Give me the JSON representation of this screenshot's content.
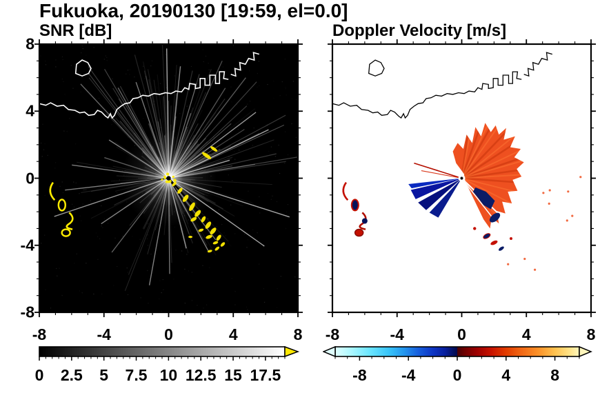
{
  "title": "Fukuoka, 20190130 [19:59, el=0.0]",
  "panels": {
    "snr": {
      "label": "SNR [dB]"
    },
    "velocity": {
      "label": "Doppler Velocity [m/s]"
    }
  },
  "axes": {
    "x_tick_labels": [
      "-8",
      "-4",
      "0",
      "4",
      "8"
    ],
    "x_tick_values": [
      -8,
      -4,
      0,
      4,
      8
    ],
    "y_tick_labels": [
      "8",
      "4",
      "0",
      "-4",
      "-8"
    ],
    "y_tick_values": [
      8,
      4,
      0,
      -4,
      -8
    ],
    "x_range": [
      -8,
      8
    ],
    "y_range": [
      -8,
      8
    ]
  },
  "colorbars": {
    "snr": {
      "tick_labels": [
        "0",
        "2.5",
        "5",
        "7.5",
        "10",
        "12.5",
        "15",
        "17.5"
      ],
      "tick_values": [
        0,
        2.5,
        5,
        7.5,
        10,
        12.5,
        15,
        17.5
      ],
      "range": [
        0,
        19
      ],
      "overflow_arrow_color": "#ffe800"
    },
    "velocity": {
      "tick_labels": [
        "-8",
        "-4",
        "0",
        "4",
        "8"
      ],
      "tick_values": [
        -8,
        -4,
        0,
        4,
        8
      ],
      "range": [
        -10,
        10
      ]
    }
  },
  "colors": {
    "snr_background": "#000000",
    "coastline_left": "#ffffff",
    "coastline_right": "#000000",
    "strong_echo_yellow": "#ffec00",
    "positive_velocity_orange": "#ee5020",
    "negative_velocity_navy": "#0a1c8e",
    "frame": "#000000"
  },
  "chart_data": [
    {
      "type": "heatmap",
      "title": "SNR [dB]",
      "x_range": [
        -8,
        8
      ],
      "y_range": [
        -8,
        8
      ],
      "x_ticks": [
        -8,
        -4,
        0,
        4,
        8
      ],
      "y_ticks": [
        -8,
        -4,
        0,
        4,
        8
      ],
      "colorbar_ticks": [
        0,
        2.5,
        5,
        7.5,
        10,
        12.5,
        15,
        17.5
      ],
      "colorbar_range": [
        0,
        19
      ],
      "colormap": "black-to-white grayscale with yellow overflow arrow",
      "radar_center": [
        0,
        0
      ],
      "features": [
        "radial SNR beams emanating from radar at origin over black (low SNR) background",
        "bright saturated white core at radar location",
        "white coastline trace across upper third with harbor jetties near x=1.5..3.5, y=5.5..6.4 and island near x=-5.4, y=6.6",
        "arc of strong (>17.5 dB, yellow) echoes from (0.4,-0.4) to (3.4,-4.3) southeast of the radar",
        "yellow echo streak near (2.5, 1.5)",
        "isolated yellow echo outlines near x=-7..-6, y=-0.5..-3.3",
        "thin black blocked-beam shadows toward the south-southeast"
      ]
    },
    {
      "type": "heatmap",
      "title": "Doppler Velocity [m/s]",
      "x_range": [
        -8,
        8
      ],
      "y_range": [
        -8,
        8
      ],
      "x_ticks": [
        -8,
        -4,
        0,
        4,
        8
      ],
      "y_ticks": [
        -8,
        -4,
        0,
        4,
        8
      ],
      "colorbar_ticks": [
        -8,
        -4,
        0,
        4,
        8
      ],
      "colorbar_range": [
        -10,
        10
      ],
      "colormap": "cyan-blue-navy for negative values, dark red-orange-yellow for positive, hard break at 0",
      "radar_center": [
        0,
        0
      ],
      "features": [
        "broad positive-velocity (orange/red, about +2 to +5 m/s) ragged fan covering NNW through NE to S of the radar out to ~3.5",
        "embedded negative (navy) pockets near (1.3,-1.3) and (2,-2.3)",
        "strong negative (navy, about -8 m/s) wedges pointing WSW from the radar to ~(-3,-1) and (-1.5,-2.3)",
        "thin positive (dark red) streak toward WNW near (-2.9, 0.9)",
        "small mixed positive/negative echoes near x=-7..-6, y=-0.5..-3.3 and near (1.5,-3.5)..(2.5,-4.2)",
        "black coastline trace identical to SNR panel"
      ]
    }
  ]
}
